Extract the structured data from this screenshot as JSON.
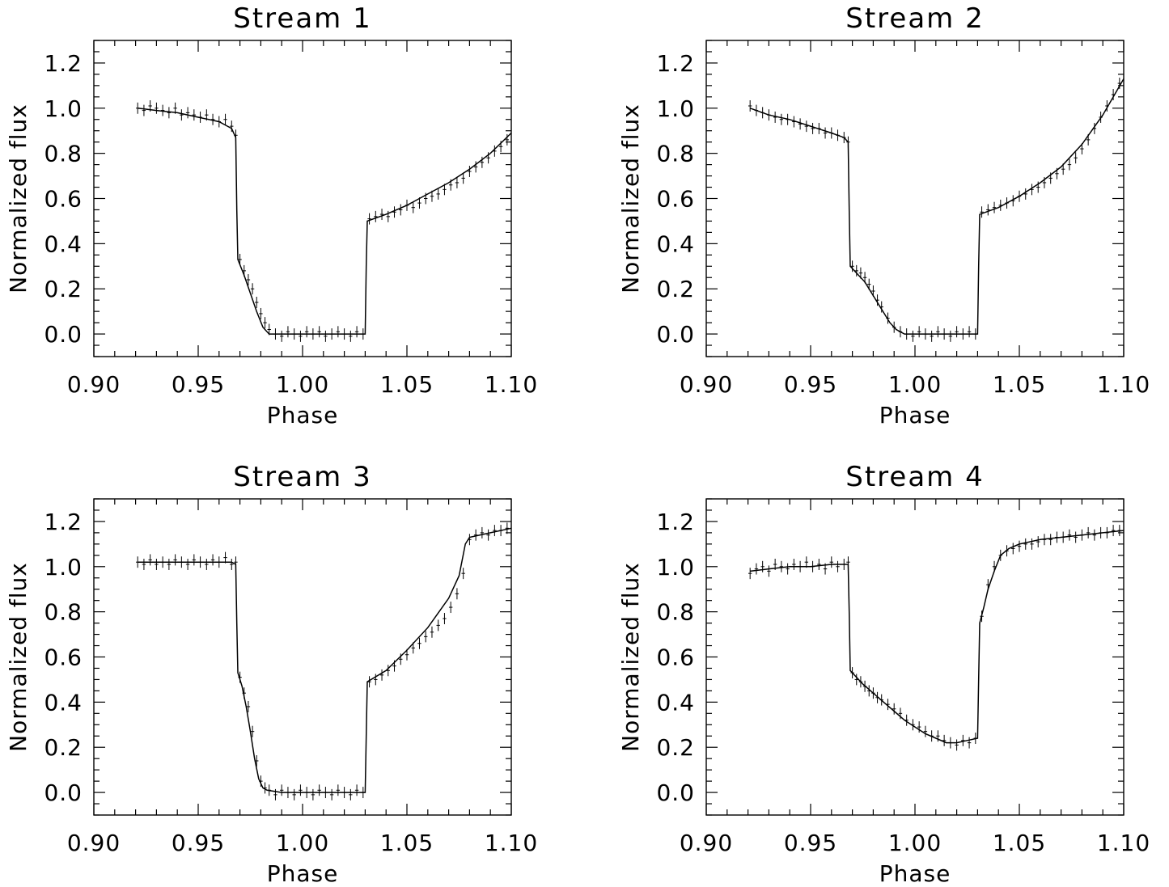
{
  "chart_data": [
    {
      "type": "scatter",
      "title": "Stream 1",
      "xlabel": "Phase",
      "ylabel": "Normalized flux",
      "xlim": [
        0.9,
        1.1
      ],
      "ylim": [
        -0.1,
        1.3
      ],
      "xticks": [
        "0.90",
        "0.95",
        "1.00",
        "1.05",
        "1.10"
      ],
      "yticks": [
        "0.0",
        "0.2",
        "0.4",
        "0.6",
        "0.8",
        "1.0",
        "1.2"
      ],
      "grid": false,
      "series": [
        {
          "style": "line",
          "x": [
            0.921,
            0.93,
            0.94,
            0.95,
            0.96,
            0.966,
            0.968,
            0.9685,
            0.969,
            0.972,
            0.975,
            0.978,
            0.981,
            0.984,
            0.987,
            0.99,
            1.0,
            1.01,
            1.02,
            1.03,
            1.0305,
            1.031,
            1.04,
            1.05,
            1.06,
            1.07,
            1.08,
            1.09,
            1.1
          ],
          "y": [
            1.0,
            0.99,
            0.98,
            0.96,
            0.94,
            0.91,
            0.87,
            0.55,
            0.33,
            0.26,
            0.18,
            0.1,
            0.03,
            0.0,
            0.0,
            0.0,
            0.0,
            0.0,
            0.0,
            0.0,
            0.3,
            0.5,
            0.53,
            0.57,
            0.62,
            0.67,
            0.73,
            0.8,
            0.89
          ]
        },
        {
          "style": "errorbar",
          "x": [
            0.921,
            0.924,
            0.927,
            0.93,
            0.933,
            0.936,
            0.939,
            0.942,
            0.945,
            0.948,
            0.951,
            0.954,
            0.957,
            0.96,
            0.963,
            0.966,
            0.968,
            0.97,
            0.972,
            0.974,
            0.976,
            0.978,
            0.98,
            0.982,
            0.984,
            0.987,
            0.99,
            0.993,
            0.996,
            0.999,
            1.002,
            1.005,
            1.008,
            1.011,
            1.014,
            1.017,
            1.02,
            1.023,
            1.026,
            1.029,
            1.032,
            1.035,
            1.038,
            1.041,
            1.044,
            1.047,
            1.05,
            1.053,
            1.056,
            1.059,
            1.062,
            1.065,
            1.068,
            1.071,
            1.074,
            1.077,
            1.08,
            1.083,
            1.086,
            1.089,
            1.092,
            1.095,
            1.098
          ],
          "y": [
            1.0,
            0.99,
            1.01,
            1.0,
            0.99,
            0.98,
            1.0,
            0.97,
            0.98,
            0.97,
            0.96,
            0.97,
            0.95,
            0.94,
            0.95,
            0.92,
            0.88,
            0.33,
            0.28,
            0.24,
            0.2,
            0.14,
            0.09,
            0.05,
            0.02,
            0.0,
            -0.01,
            0.01,
            0.0,
            -0.01,
            0.01,
            0.0,
            0.01,
            -0.01,
            0.0,
            0.01,
            0.0,
            -0.01,
            0.01,
            0.0,
            0.51,
            0.52,
            0.53,
            0.52,
            0.54,
            0.55,
            0.57,
            0.56,
            0.58,
            0.6,
            0.61,
            0.62,
            0.64,
            0.66,
            0.67,
            0.69,
            0.72,
            0.74,
            0.76,
            0.78,
            0.81,
            0.83,
            0.86
          ],
          "err": 0.025
        }
      ]
    },
    {
      "type": "scatter",
      "title": "Stream 2",
      "xlabel": "Phase",
      "ylabel": "Normalized flux",
      "xlim": [
        0.9,
        1.1
      ],
      "ylim": [
        -0.1,
        1.3
      ],
      "xticks": [
        "0.90",
        "0.95",
        "1.00",
        "1.05",
        "1.10"
      ],
      "yticks": [
        "0.0",
        "0.2",
        "0.4",
        "0.6",
        "0.8",
        "1.0",
        "1.2"
      ],
      "grid": false,
      "series": [
        {
          "style": "line",
          "x": [
            0.921,
            0.93,
            0.94,
            0.95,
            0.96,
            0.966,
            0.968,
            0.9685,
            0.969,
            0.972,
            0.976,
            0.98,
            0.984,
            0.988,
            0.991,
            0.995,
            1.0,
            1.01,
            1.02,
            1.03,
            1.0305,
            1.031,
            1.04,
            1.05,
            1.06,
            1.07,
            1.08,
            1.09,
            1.1
          ],
          "y": [
            1.0,
            0.97,
            0.95,
            0.92,
            0.89,
            0.87,
            0.85,
            0.55,
            0.3,
            0.27,
            0.23,
            0.17,
            0.11,
            0.05,
            0.02,
            0.0,
            0.0,
            0.0,
            0.0,
            0.0,
            0.3,
            0.53,
            0.56,
            0.61,
            0.67,
            0.74,
            0.84,
            0.97,
            1.13
          ]
        },
        {
          "style": "errorbar",
          "x": [
            0.921,
            0.924,
            0.927,
            0.93,
            0.933,
            0.936,
            0.939,
            0.942,
            0.945,
            0.948,
            0.951,
            0.954,
            0.957,
            0.96,
            0.963,
            0.966,
            0.968,
            0.97,
            0.972,
            0.974,
            0.976,
            0.978,
            0.98,
            0.982,
            0.984,
            0.987,
            0.99,
            0.993,
            0.996,
            0.999,
            1.002,
            1.005,
            1.008,
            1.011,
            1.014,
            1.017,
            1.02,
            1.023,
            1.026,
            1.029,
            1.032,
            1.035,
            1.038,
            1.041,
            1.044,
            1.047,
            1.05,
            1.053,
            1.056,
            1.059,
            1.062,
            1.065,
            1.068,
            1.071,
            1.074,
            1.077,
            1.08,
            1.083,
            1.086,
            1.089,
            1.092,
            1.095,
            1.098
          ],
          "y": [
            1.01,
            0.99,
            0.98,
            0.97,
            0.96,
            0.95,
            0.95,
            0.94,
            0.93,
            0.92,
            0.91,
            0.91,
            0.89,
            0.89,
            0.88,
            0.87,
            0.85,
            0.3,
            0.28,
            0.27,
            0.25,
            0.22,
            0.19,
            0.15,
            0.12,
            0.07,
            0.03,
            0.01,
            0.0,
            -0.01,
            0.01,
            0.0,
            -0.01,
            0.01,
            0.0,
            -0.01,
            0.01,
            0.0,
            0.01,
            0.0,
            0.54,
            0.55,
            0.56,
            0.57,
            0.58,
            0.59,
            0.61,
            0.62,
            0.64,
            0.65,
            0.67,
            0.69,
            0.71,
            0.73,
            0.75,
            0.78,
            0.82,
            0.86,
            0.91,
            0.96,
            1.01,
            1.06,
            1.11
          ],
          "err": 0.025
        }
      ]
    },
    {
      "type": "scatter",
      "title": "Stream 3",
      "xlabel": "Phase",
      "ylabel": "Normalized flux",
      "xlim": [
        0.9,
        1.1
      ],
      "ylim": [
        -0.1,
        1.3
      ],
      "xticks": [
        "0.90",
        "0.95",
        "1.00",
        "1.05",
        "1.10"
      ],
      "yticks": [
        "0.0",
        "0.2",
        "0.4",
        "0.6",
        "0.8",
        "1.0",
        "1.2"
      ],
      "grid": false,
      "series": [
        {
          "style": "line",
          "x": [
            0.921,
            0.93,
            0.94,
            0.95,
            0.96,
            0.966,
            0.968,
            0.9685,
            0.969,
            0.971,
            0.973,
            0.975,
            0.977,
            0.979,
            0.981,
            0.983,
            0.99,
            1.0,
            1.01,
            1.02,
            1.03,
            1.0305,
            1.031,
            1.04,
            1.05,
            1.06,
            1.07,
            1.075,
            1.078,
            1.08,
            1.09,
            1.1
          ],
          "y": [
            1.02,
            1.02,
            1.02,
            1.02,
            1.02,
            1.02,
            1.01,
            0.75,
            0.53,
            0.47,
            0.38,
            0.27,
            0.15,
            0.06,
            0.02,
            0.01,
            0.0,
            0.0,
            0.0,
            0.0,
            0.0,
            0.25,
            0.49,
            0.54,
            0.63,
            0.73,
            0.86,
            0.96,
            1.1,
            1.13,
            1.15,
            1.17
          ]
        },
        {
          "style": "errorbar",
          "x": [
            0.921,
            0.924,
            0.927,
            0.93,
            0.933,
            0.936,
            0.939,
            0.942,
            0.945,
            0.948,
            0.951,
            0.954,
            0.957,
            0.96,
            0.963,
            0.966,
            0.968,
            0.97,
            0.972,
            0.974,
            0.976,
            0.978,
            0.98,
            0.982,
            0.984,
            0.987,
            0.99,
            0.993,
            0.996,
            0.999,
            1.002,
            1.005,
            1.008,
            1.011,
            1.014,
            1.017,
            1.02,
            1.023,
            1.026,
            1.029,
            1.032,
            1.035,
            1.038,
            1.041,
            1.044,
            1.047,
            1.05,
            1.053,
            1.056,
            1.059,
            1.062,
            1.065,
            1.068,
            1.071,
            1.074,
            1.077,
            1.08,
            1.083,
            1.086,
            1.089,
            1.092,
            1.095,
            1.098
          ],
          "y": [
            1.02,
            1.01,
            1.03,
            1.01,
            1.02,
            1.01,
            1.03,
            1.02,
            1.01,
            1.03,
            1.02,
            1.01,
            1.03,
            1.02,
            1.04,
            1.01,
            1.02,
            0.51,
            0.44,
            0.38,
            0.27,
            0.14,
            0.05,
            0.02,
            0.01,
            -0.01,
            0.01,
            0.0,
            -0.01,
            0.01,
            0.0,
            -0.01,
            0.01,
            0.0,
            -0.01,
            0.01,
            0.0,
            -0.01,
            0.01,
            0.0,
            0.49,
            0.5,
            0.52,
            0.54,
            0.56,
            0.59,
            0.61,
            0.64,
            0.66,
            0.69,
            0.71,
            0.74,
            0.77,
            0.82,
            0.88,
            0.97,
            1.12,
            1.14,
            1.15,
            1.14,
            1.16,
            1.16,
            1.17
          ],
          "err": 0.025
        }
      ]
    },
    {
      "type": "scatter",
      "title": "Stream 4",
      "xlabel": "Phase",
      "ylabel": "Normalized flux",
      "xlim": [
        0.9,
        1.1
      ],
      "ylim": [
        -0.1,
        1.3
      ],
      "xticks": [
        "0.90",
        "0.95",
        "1.00",
        "1.05",
        "1.10"
      ],
      "yticks": [
        "0.0",
        "0.2",
        "0.4",
        "0.6",
        "0.8",
        "1.0",
        "1.2"
      ],
      "grid": false,
      "series": [
        {
          "style": "line",
          "x": [
            0.921,
            0.93,
            0.94,
            0.95,
            0.96,
            0.966,
            0.968,
            0.9685,
            0.969,
            0.975,
            0.98,
            0.985,
            0.99,
            0.995,
            1.0,
            1.005,
            1.01,
            1.015,
            1.02,
            1.025,
            1.03,
            1.0305,
            1.031,
            1.033,
            1.035,
            1.038,
            1.041,
            1.045,
            1.05,
            1.06,
            1.07,
            1.08,
            1.09,
            1.1
          ],
          "y": [
            0.98,
            0.99,
            1.0,
            1.0,
            1.01,
            1.01,
            1.01,
            0.8,
            0.54,
            0.48,
            0.44,
            0.4,
            0.36,
            0.32,
            0.29,
            0.26,
            0.24,
            0.22,
            0.22,
            0.23,
            0.24,
            0.5,
            0.75,
            0.82,
            0.9,
            0.98,
            1.05,
            1.08,
            1.1,
            1.12,
            1.13,
            1.14,
            1.15,
            1.16
          ]
        },
        {
          "style": "errorbar",
          "x": [
            0.921,
            0.924,
            0.927,
            0.93,
            0.933,
            0.936,
            0.939,
            0.942,
            0.945,
            0.948,
            0.951,
            0.954,
            0.957,
            0.96,
            0.963,
            0.966,
            0.968,
            0.97,
            0.972,
            0.974,
            0.976,
            0.978,
            0.98,
            0.982,
            0.984,
            0.987,
            0.99,
            0.993,
            0.996,
            0.999,
            1.002,
            1.005,
            1.008,
            1.011,
            1.014,
            1.017,
            1.02,
            1.023,
            1.026,
            1.029,
            1.032,
            1.035,
            1.038,
            1.041,
            1.044,
            1.047,
            1.05,
            1.053,
            1.056,
            1.059,
            1.062,
            1.065,
            1.068,
            1.071,
            1.074,
            1.077,
            1.08,
            1.083,
            1.086,
            1.089,
            1.092,
            1.095,
            1.098
          ],
          "y": [
            0.97,
            0.99,
            1.0,
            0.98,
            1.01,
            1.0,
            0.99,
            1.01,
            1.0,
            1.02,
            1.0,
            1.01,
            0.99,
            1.02,
            1.0,
            1.01,
            1.02,
            0.53,
            0.5,
            0.49,
            0.47,
            0.45,
            0.44,
            0.42,
            0.41,
            0.39,
            0.37,
            0.35,
            0.32,
            0.3,
            0.29,
            0.27,
            0.25,
            0.25,
            0.23,
            0.22,
            0.21,
            0.23,
            0.22,
            0.24,
            0.78,
            0.92,
            1.0,
            1.05,
            1.07,
            1.08,
            1.09,
            1.1,
            1.1,
            1.11,
            1.12,
            1.12,
            1.13,
            1.13,
            1.14,
            1.13,
            1.14,
            1.15,
            1.14,
            1.15,
            1.15,
            1.16,
            1.16
          ],
          "err": 0.025
        }
      ]
    }
  ]
}
